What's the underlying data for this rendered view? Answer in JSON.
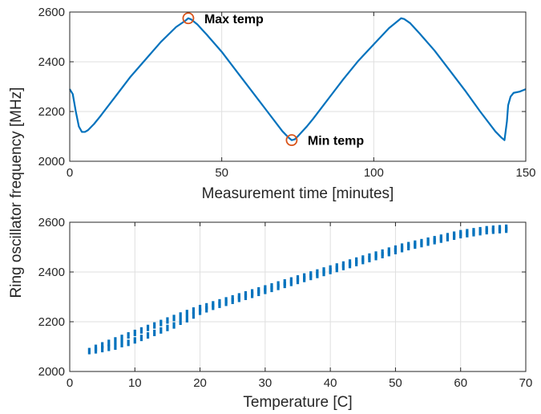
{
  "figure": {
    "shared_ylabel": "Ring oscillator frequency [MHz]"
  },
  "chart_data": [
    {
      "type": "line",
      "xlabel": "Measurement time [minutes]",
      "ylabel": "Ring oscillator frequency [MHz]",
      "xlim": [
        0,
        150
      ],
      "ylim": [
        2000,
        2600
      ],
      "xticks": [
        "0",
        "50",
        "100",
        "150"
      ],
      "yticks": [
        "2000",
        "2200",
        "2400",
        "2600"
      ],
      "grid": true,
      "series_color": "#0072BD",
      "marker_color": "#D95319",
      "series": [
        {
          "x": [
            0,
            1,
            2,
            3,
            4,
            5,
            6,
            8,
            10,
            15,
            20,
            25,
            30,
            35,
            38,
            39,
            40,
            42,
            45,
            50,
            55,
            60,
            65,
            70,
            72,
            73,
            74,
            75,
            78,
            80,
            85,
            90,
            95,
            100,
            105,
            108,
            109,
            110,
            112,
            115,
            120,
            125,
            130,
            135,
            140,
            142,
            143,
            143.8,
            144.2,
            145,
            146,
            148,
            150
          ],
          "y": [
            2290,
            2270,
            2200,
            2140,
            2118,
            2118,
            2125,
            2150,
            2180,
            2260,
            2340,
            2410,
            2480,
            2540,
            2565,
            2575,
            2570,
            2550,
            2510,
            2440,
            2360,
            2280,
            2200,
            2120,
            2095,
            2085,
            2088,
            2100,
            2140,
            2170,
            2250,
            2330,
            2405,
            2470,
            2535,
            2565,
            2575,
            2572,
            2555,
            2515,
            2445,
            2365,
            2285,
            2200,
            2120,
            2095,
            2085,
            2160,
            2225,
            2260,
            2275,
            2280,
            2290
          ]
        }
      ],
      "annotations": [
        {
          "label": "Max temp",
          "x": 39,
          "y": 2575
        },
        {
          "label": "Min temp",
          "x": 73,
          "y": 2085
        }
      ]
    },
    {
      "type": "scatter",
      "xlabel": "Temperature [C]",
      "ylabel": "Ring oscillator frequency [MHz]",
      "xlim": [
        0,
        70
      ],
      "ylim": [
        2000,
        2600
      ],
      "xticks": [
        "0",
        "10",
        "20",
        "30",
        "40",
        "50",
        "60",
        "70"
      ],
      "yticks": [
        "2000",
        "2200",
        "2400",
        "2600"
      ],
      "grid": true,
      "series_color": "#0072BD",
      "series": [
        {
          "points": [
            [
              3,
              2082
            ],
            [
              4,
              2085
            ],
            [
              4,
              2095
            ],
            [
              5,
              2090
            ],
            [
              5,
              2105
            ],
            [
              6,
              2095
            ],
            [
              6,
              2115
            ],
            [
              7,
              2100
            ],
            [
              7,
              2125
            ],
            [
              8,
              2110
            ],
            [
              8,
              2135
            ],
            [
              9,
              2115
            ],
            [
              9,
              2145
            ],
            [
              10,
              2125
            ],
            [
              10,
              2155
            ],
            [
              11,
              2135
            ],
            [
              11,
              2165
            ],
            [
              12,
              2145
            ],
            [
              12,
              2175
            ],
            [
              13,
              2155
            ],
            [
              13,
              2185
            ],
            [
              14,
              2165
            ],
            [
              14,
              2195
            ],
            [
              15,
              2175
            ],
            [
              15,
              2205
            ],
            [
              16,
              2185
            ],
            [
              16,
              2215
            ],
            [
              17,
              2200
            ],
            [
              17,
              2225
            ],
            [
              18,
              2210
            ],
            [
              18,
              2235
            ],
            [
              19,
              2225
            ],
            [
              19,
              2245
            ],
            [
              20,
              2240
            ],
            [
              20,
              2255
            ],
            [
              21,
              2250
            ],
            [
              21,
              2262
            ],
            [
              22,
              2260
            ],
            [
              22,
              2270
            ],
            [
              23,
              2268
            ],
            [
              23,
              2278
            ],
            [
              24,
              2276
            ],
            [
              24,
              2286
            ],
            [
              25,
              2284
            ],
            [
              25,
              2294
            ],
            [
              26,
              2292
            ],
            [
              26,
              2302
            ],
            [
              27,
              2300
            ],
            [
              27,
              2310
            ],
            [
              28,
              2308
            ],
            [
              28,
              2318
            ],
            [
              29,
              2316
            ],
            [
              29,
              2326
            ],
            [
              30,
              2324
            ],
            [
              30,
              2334
            ],
            [
              31,
              2332
            ],
            [
              31,
              2342
            ],
            [
              32,
              2340
            ],
            [
              32,
              2350
            ],
            [
              33,
              2348
            ],
            [
              33,
              2358
            ],
            [
              34,
              2356
            ],
            [
              34,
              2366
            ],
            [
              35,
              2364
            ],
            [
              35,
              2374
            ],
            [
              36,
              2372
            ],
            [
              36,
              2382
            ],
            [
              37,
              2380
            ],
            [
              37,
              2390
            ],
            [
              38,
              2388
            ],
            [
              38,
              2398
            ],
            [
              39,
              2396
            ],
            [
              39,
              2406
            ],
            [
              40,
              2404
            ],
            [
              40,
              2414
            ],
            [
              41,
              2412
            ],
            [
              41,
              2422
            ],
            [
              42,
              2420
            ],
            [
              42,
              2430
            ],
            [
              43,
              2428
            ],
            [
              43,
              2438
            ],
            [
              44,
              2436
            ],
            [
              44,
              2446
            ],
            [
              45,
              2444
            ],
            [
              45,
              2454
            ],
            [
              46,
              2452
            ],
            [
              46,
              2462
            ],
            [
              47,
              2460
            ],
            [
              47,
              2470
            ],
            [
              48,
              2468
            ],
            [
              48,
              2478
            ],
            [
              49,
              2476
            ],
            [
              49,
              2486
            ],
            [
              50,
              2484
            ],
            [
              50,
              2494
            ],
            [
              51,
              2492
            ],
            [
              51,
              2502
            ],
            [
              52,
              2500
            ],
            [
              52,
              2508
            ],
            [
              53,
              2506
            ],
            [
              53,
              2514
            ],
            [
              54,
              2512
            ],
            [
              54,
              2520
            ],
            [
              55,
              2518
            ],
            [
              55,
              2526
            ],
            [
              56,
              2524
            ],
            [
              56,
              2532
            ],
            [
              57,
              2530
            ],
            [
              57,
              2538
            ],
            [
              58,
              2536
            ],
            [
              58,
              2544
            ],
            [
              59,
              2542
            ],
            [
              59,
              2550
            ],
            [
              60,
              2548
            ],
            [
              60,
              2556
            ],
            [
              61,
              2552
            ],
            [
              61,
              2560
            ],
            [
              62,
              2556
            ],
            [
              62,
              2564
            ],
            [
              63,
              2560
            ],
            [
              63,
              2568
            ],
            [
              64,
              2564
            ],
            [
              64,
              2572
            ],
            [
              65,
              2566
            ],
            [
              65,
              2574
            ],
            [
              66,
              2568
            ],
            [
              66,
              2576
            ],
            [
              67,
              2570
            ],
            [
              67,
              2578
            ]
          ]
        }
      ]
    }
  ]
}
